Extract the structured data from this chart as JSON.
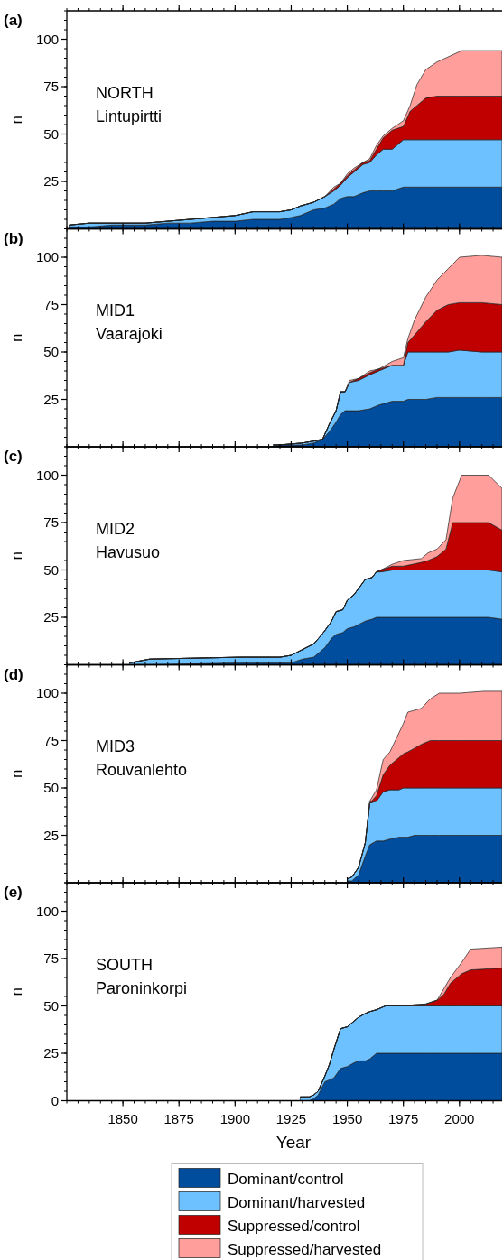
{
  "chart_data": [
    {
      "type": "area",
      "stacked": true,
      "title": "(a)",
      "annotations": [
        "NORTH",
        "Lintupirtti"
      ],
      "ylabel": "n",
      "xlim": [
        1825,
        2019
      ],
      "xticks": [
        1850,
        1875,
        1900,
        1925,
        1950,
        1975,
        2000
      ],
      "ylim": [
        0,
        115
      ],
      "yticks": [
        25,
        50,
        75,
        100
      ],
      "tick_labels": "y",
      "legend": false,
      "x": [
        1826,
        1835,
        1845,
        1860,
        1870,
        1880,
        1890,
        1900,
        1908,
        1915,
        1920,
        1925,
        1929,
        1935,
        1940,
        1944,
        1947,
        1950,
        1953,
        1957,
        1960,
        1963,
        1966,
        1970,
        1975,
        1978,
        1981,
        1985,
        1990,
        2001,
        2019
      ],
      "series": [
        {
          "color": "#004c9d",
          "values": [
            1,
            1,
            2,
            2,
            3,
            3,
            4,
            4,
            5,
            5,
            5,
            6,
            7,
            10,
            11,
            13,
            16,
            17,
            17,
            19,
            20,
            20,
            20,
            20,
            22,
            22,
            22,
            22,
            22,
            22,
            22
          ]
        },
        {
          "color": "#6ec1ff",
          "values": [
            1,
            2,
            1,
            1,
            1,
            2,
            2,
            3,
            4,
            4,
            4,
            4,
            5,
            4,
            6,
            7,
            7,
            10,
            13,
            15,
            15,
            19,
            22,
            22,
            25,
            25,
            25,
            25,
            25,
            25,
            25
          ]
        },
        {
          "color": "#c00000",
          "values": [
            0,
            0,
            0,
            0,
            0,
            0,
            0,
            0,
            0,
            0,
            0,
            0,
            0,
            0,
            0,
            1,
            1,
            1,
            1,
            1,
            1,
            3,
            6,
            10,
            7,
            15,
            18,
            22,
            23,
            23,
            23
          ]
        },
        {
          "color": "#ff9e9a",
          "values": [
            0,
            0,
            0,
            0,
            0,
            0,
            0,
            0,
            0,
            0,
            0,
            0,
            0,
            0,
            0,
            1,
            0,
            1,
            1,
            0,
            1,
            2,
            1,
            1,
            3,
            3,
            11,
            15,
            18,
            24,
            24
          ]
        }
      ]
    },
    {
      "type": "area",
      "stacked": true,
      "title": "(b)",
      "annotations": [
        "MID1",
        "Vaarajoki"
      ],
      "ylabel": "n",
      "xlim": [
        1825,
        2019
      ],
      "xticks": [
        1850,
        1875,
        1900,
        1925,
        1950,
        1975,
        2000
      ],
      "ylim": [
        0,
        115
      ],
      "yticks": [
        25,
        50,
        75,
        100
      ],
      "tick_labels": "y",
      "legend": false,
      "x": [
        1917,
        1920,
        1930,
        1935,
        1939,
        1942,
        1945,
        1947,
        1949,
        1951,
        1955,
        1960,
        1964,
        1970,
        1975,
        1977,
        1980,
        1985,
        1990,
        1995,
        2000,
        2010,
        2019
      ],
      "series": [
        {
          "color": "#004c9d",
          "values": [
            0,
            1,
            1,
            2,
            4,
            8,
            13,
            17,
            19,
            19,
            19,
            20,
            22,
            24,
            24,
            25,
            25,
            25,
            26,
            26,
            26,
            26,
            26
          ]
        },
        {
          "color": "#6ec1ff",
          "values": [
            1,
            0,
            1,
            1,
            0,
            4,
            6,
            12,
            10,
            15,
            16,
            18,
            18,
            19,
            19,
            25,
            25,
            25,
            24,
            24,
            25,
            24,
            24
          ]
        },
        {
          "color": "#c00000",
          "values": [
            0,
            0,
            0,
            0,
            0,
            0,
            0,
            0,
            0,
            0,
            1,
            1,
            1,
            0,
            0,
            5,
            9,
            16,
            22,
            25,
            25,
            26,
            25
          ]
        },
        {
          "color": "#ff9e9a",
          "values": [
            0,
            0,
            0,
            0,
            0,
            0,
            0,
            0,
            0,
            1,
            0,
            1,
            0,
            2,
            4,
            2,
            8,
            13,
            16,
            19,
            24,
            25,
            25
          ]
        }
      ]
    },
    {
      "type": "area",
      "stacked": true,
      "title": "(c)",
      "annotations": [
        "MID2",
        "Havusuo"
      ],
      "ylabel": "n",
      "xlim": [
        1825,
        2019
      ],
      "xticks": [
        1850,
        1875,
        1900,
        1925,
        1950,
        1975,
        2000
      ],
      "ylim": [
        0,
        115
      ],
      "yticks": [
        25,
        50,
        75,
        100
      ],
      "tick_labels": "y",
      "legend": false,
      "x": [
        1853,
        1862,
        1902,
        1920,
        1925,
        1930,
        1935,
        1938,
        1940,
        1943,
        1945,
        1948,
        1950,
        1953,
        1958,
        1961,
        1963,
        1965,
        1970,
        1975,
        1983,
        1986,
        1990,
        1994,
        1997,
        2001,
        2013,
        2019
      ],
      "series": [
        {
          "color": "#004c9d",
          "values": [
            0,
            0,
            1,
            1,
            1,
            3,
            4,
            7,
            9,
            14,
            16,
            17,
            19,
            20,
            23,
            24,
            25,
            25,
            25,
            25,
            25,
            25,
            25,
            25,
            25,
            25,
            25,
            24
          ]
        },
        {
          "color": "#6ec1ff",
          "values": [
            1,
            3,
            3,
            3,
            4,
            5,
            7,
            8,
            9,
            9,
            12,
            12,
            15,
            17,
            22,
            22,
            24,
            24,
            25,
            25,
            25,
            25,
            25,
            25,
            25,
            25,
            25,
            25
          ]
        },
        {
          "color": "#c00000",
          "values": [
            0,
            0,
            0,
            0,
            0,
            0,
            0,
            0,
            0,
            0,
            0,
            0,
            0,
            0,
            0,
            0,
            0,
            1,
            2,
            2,
            4,
            5,
            7,
            11,
            25,
            25,
            25,
            22
          ]
        },
        {
          "color": "#ff9e9a",
          "values": [
            0,
            0,
            0,
            0,
            0,
            0,
            0,
            0,
            0,
            0,
            0,
            0,
            0,
            0,
            0,
            0,
            0,
            0,
            1,
            3,
            2,
            4,
            4,
            5,
            13,
            25,
            25,
            22
          ]
        }
      ]
    },
    {
      "type": "area",
      "stacked": true,
      "title": "(d)",
      "annotations": [
        "MID3",
        "Rouvanlehto"
      ],
      "ylabel": "n",
      "xlim": [
        1825,
        2019
      ],
      "xticks": [
        1850,
        1875,
        1900,
        1925,
        1950,
        1975,
        2000
      ],
      "ylim": [
        0,
        115
      ],
      "yticks": [
        25,
        50,
        75,
        100
      ],
      "tick_labels": "y",
      "legend": false,
      "x": [
        1950,
        1952,
        1955,
        1958,
        1960,
        1963,
        1966,
        1969,
        1973,
        1975,
        1977,
        1980,
        1983,
        1987,
        1991,
        2000,
        2011,
        2019
      ],
      "series": [
        {
          "color": "#004c9d",
          "values": [
            1,
            1,
            4,
            14,
            20,
            22,
            22,
            23,
            24,
            24,
            24,
            25,
            25,
            25,
            25,
            25,
            25,
            25
          ]
        },
        {
          "color": "#6ec1ff",
          "values": [
            1,
            2,
            4,
            7,
            22,
            21,
            26,
            26,
            25,
            26,
            26,
            25,
            25,
            25,
            25,
            25,
            25,
            25
          ]
        },
        {
          "color": "#c00000",
          "values": [
            0,
            0,
            0,
            0,
            0,
            3,
            9,
            13,
            17,
            18,
            19,
            21,
            23,
            25,
            25,
            25,
            25,
            25
          ]
        },
        {
          "color": "#ff9e9a",
          "values": [
            0,
            0,
            0,
            0,
            1,
            3,
            8,
            7,
            13,
            16,
            21,
            20,
            19,
            22,
            25,
            25,
            26,
            26
          ]
        }
      ]
    },
    {
      "type": "area",
      "stacked": true,
      "title": "(e)",
      "annotations": [
        "SOUTH",
        "Paroninkorpi"
      ],
      "ylabel": "n",
      "xlabel": "Year",
      "xlim": [
        1825,
        2019
      ],
      "xticks": [
        1850,
        1875,
        1900,
        1925,
        1950,
        1975,
        2000
      ],
      "ylim": [
        0,
        115
      ],
      "yticks": [
        0,
        25,
        50,
        75,
        100
      ],
      "legend": "bottom",
      "x": [
        1929,
        1933,
        1935,
        1937,
        1940,
        1942,
        1944,
        1947,
        1950,
        1953,
        1955,
        1958,
        1960,
        1963,
        1967,
        1973,
        1985,
        1990,
        1993,
        1996,
        2001,
        2005,
        2019
      ],
      "series": [
        {
          "name": "Dominant/control",
          "color": "#004c9d",
          "values": [
            0,
            0,
            1,
            3,
            10,
            11,
            12,
            17,
            18,
            20,
            21,
            21,
            22,
            25,
            25,
            25,
            25,
            25,
            25,
            25,
            25,
            25,
            25
          ]
        },
        {
          "name": "Dominant/harvested",
          "color": "#6ec1ff",
          "values": [
            2,
            2,
            2,
            2,
            3,
            8,
            15,
            21,
            21,
            22,
            23,
            25,
            25,
            23,
            25,
            25,
            25,
            25,
            25,
            25,
            25,
            25,
            25
          ]
        },
        {
          "name": "Suppressed/control",
          "color": "#c00000",
          "values": [
            0,
            0,
            0,
            0,
            0,
            0,
            0,
            0,
            0,
            0,
            0,
            0,
            0,
            0,
            0,
            0,
            1,
            3,
            6,
            12,
            17,
            19,
            20
          ]
        },
        {
          "name": "Suppressed/harvested",
          "color": "#ff9e9a",
          "values": [
            0,
            0,
            0,
            0,
            0,
            0,
            0,
            0,
            0,
            0,
            0,
            0,
            0,
            0,
            0,
            0,
            0,
            0,
            3,
            3,
            6,
            11,
            11
          ]
        }
      ]
    }
  ]
}
